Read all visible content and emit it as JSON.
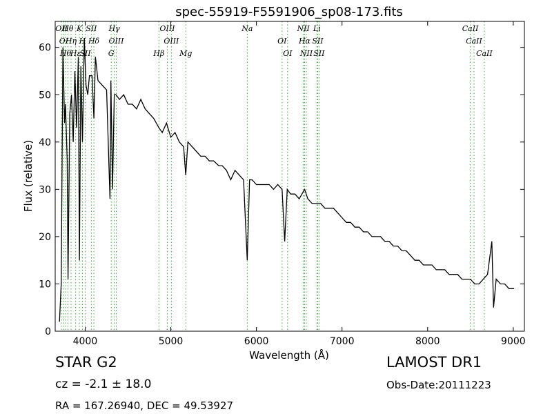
{
  "chart_data": {
    "type": "line",
    "title": "spec-55919-F5591906_sp08-173.fits",
    "xlabel": "Wavelength (Å)",
    "ylabel": "Flux (relative)",
    "xlim": [
      3650,
      9130
    ],
    "ylim": [
      0,
      65.5
    ],
    "xticks": [
      4000,
      5000,
      6000,
      7000,
      8000,
      9000
    ],
    "yticks": [
      0,
      10,
      20,
      30,
      40,
      50,
      60
    ],
    "grid": false,
    "series": [
      {
        "x": [
          3700,
          3720,
          3740,
          3760,
          3770,
          3790,
          3800,
          3820,
          3840,
          3860,
          3880,
          3900,
          3920,
          3933,
          3950,
          3968,
          3990,
          4010,
          4030,
          4050,
          4080,
          4102,
          4120,
          4150,
          4200,
          4250,
          4290,
          4300,
          4320,
          4340,
          4360,
          4400,
          4450,
          4500,
          4550,
          4600,
          4650,
          4700,
          4750,
          4800,
          4861,
          4900,
          4950,
          5000,
          5050,
          5100,
          5150,
          5175,
          5200,
          5250,
          5300,
          5350,
          5400,
          5450,
          5500,
          5560,
          5600,
          5650,
          5700,
          5750,
          5800,
          5850,
          5893,
          5920,
          5950,
          6000,
          6050,
          6100,
          6150,
          6200,
          6250,
          6300,
          6330,
          6360,
          6400,
          6450,
          6500,
          6563,
          6600,
          6650,
          6700,
          6750,
          6800,
          6850,
          6900,
          6950,
          7000,
          7050,
          7100,
          7150,
          7200,
          7250,
          7300,
          7350,
          7400,
          7450,
          7500,
          7550,
          7600,
          7650,
          7700,
          7750,
          7800,
          7850,
          7900,
          7950,
          8000,
          8050,
          8100,
          8150,
          8200,
          8250,
          8300,
          8350,
          8400,
          8450,
          8500,
          8550,
          8600,
          8650,
          8700,
          8750,
          8770,
          8800,
          8850,
          8900,
          8950,
          9000,
          9010
        ],
        "y": [
          2,
          10,
          60,
          44,
          48,
          36,
          11,
          46,
          50,
          40,
          55,
          43,
          58,
          15,
          56,
          40,
          62,
          52,
          50,
          54,
          54,
          45,
          58,
          53,
          52,
          51,
          28,
          53,
          30,
          50,
          50,
          49,
          50,
          48,
          48,
          47,
          49,
          47,
          46,
          45,
          43,
          42,
          44,
          41,
          42,
          40,
          39,
          33,
          40,
          39,
          38,
          37,
          37,
          36,
          36,
          35,
          35,
          34,
          32,
          34,
          33,
          32,
          15,
          32,
          32,
          31,
          31,
          31,
          31,
          30,
          31,
          30,
          19,
          30,
          29,
          29,
          28,
          30,
          28,
          27,
          27,
          27,
          26,
          26,
          26,
          25,
          24,
          23,
          23,
          22,
          22,
          21,
          21,
          20,
          20,
          20,
          19,
          19,
          18,
          18,
          17,
          17,
          16,
          15,
          15,
          14,
          14,
          14,
          13,
          13,
          13,
          12,
          12,
          12,
          11,
          11,
          11,
          10,
          10,
          11,
          12,
          19,
          5,
          11,
          10,
          10,
          9,
          9,
          9
        ]
      }
    ],
    "lines": [
      {
        "x": 3723,
        "label": "OII"
      },
      {
        "x": 3750,
        "label": "OI"
      },
      {
        "x": 3771,
        "label": "Hθ"
      },
      {
        "x": 3798,
        "label": "Hθ"
      },
      {
        "x": 3835,
        "label": "Hη"
      },
      {
        "x": 3889,
        "label": "Hε"
      },
      {
        "x": 3933,
        "label": "K"
      },
      {
        "x": 3968,
        "label": "H"
      },
      {
        "x": 4000,
        "label": "SII"
      },
      {
        "x": 4072,
        "label": "SII"
      },
      {
        "x": 4102,
        "label": "Hδ"
      },
      {
        "x": 4304,
        "label": "G"
      },
      {
        "x": 4340,
        "label": "Hγ"
      },
      {
        "x": 4363,
        "label": "OIII"
      },
      {
        "x": 4861,
        "label": "Hβ"
      },
      {
        "x": 4959,
        "label": "OIII"
      },
      {
        "x": 5007,
        "label": "OIII"
      },
      {
        "x": 5175,
        "label": "Mg"
      },
      {
        "x": 5893,
        "label": "Na"
      },
      {
        "x": 6300,
        "label": "OI"
      },
      {
        "x": 6364,
        "label": "OI"
      },
      {
        "x": 6548,
        "label": "NII"
      },
      {
        "x": 6563,
        "label": "Hα"
      },
      {
        "x": 6583,
        "label": "NII"
      },
      {
        "x": 6707,
        "label": "Li"
      },
      {
        "x": 6716,
        "label": "SII"
      },
      {
        "x": 6731,
        "label": "SII"
      },
      {
        "x": 8498,
        "label": "CaII"
      },
      {
        "x": 8542,
        "label": "CaII"
      },
      {
        "x": 8662,
        "label": "CaII"
      }
    ]
  },
  "info": {
    "object_class": "STAR   G2",
    "cz": "cz = -2.1  ± 18.0",
    "radec": "RA = 167.26940, DEC = 49.53927",
    "survey": "LAMOST DR1",
    "obs_date": "Obs-Date:20111223"
  },
  "colors": {
    "spectrum": "#000000",
    "line_markers": "#33aa33",
    "axes": "#000000",
    "background": "#ffffff"
  }
}
